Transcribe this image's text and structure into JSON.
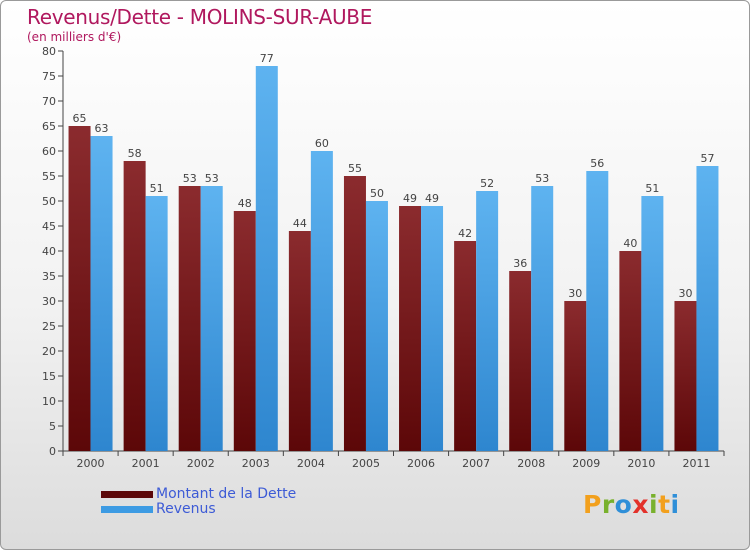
{
  "title": "Revenus/Dette - MOLINS-SUR-AUBE",
  "subtitle": "(en milliers d'€)",
  "logo": {
    "letters": [
      "P",
      "r",
      "o",
      "x",
      "i",
      "t",
      "i"
    ],
    "colors": [
      "#f2a01d",
      "#79b12d",
      "#2f8fd8",
      "#e3322b",
      "#79b12d",
      "#f2a01d",
      "#2f8fd8"
    ]
  },
  "chart_data": {
    "type": "bar",
    "categories": [
      "2000",
      "2001",
      "2002",
      "2003",
      "2004",
      "2005",
      "2006",
      "2007",
      "2008",
      "2009",
      "2010",
      "2011"
    ],
    "series": [
      {
        "name": "Montant de la Dette",
        "color": "#7a1a1c",
        "values": [
          65,
          58,
          53,
          48,
          44,
          55,
          49,
          42,
          36,
          30,
          40,
          30
        ]
      },
      {
        "name": "Revenus",
        "color": "#3d9be3",
        "values": [
          63,
          51,
          53,
          77,
          60,
          50,
          49,
          52,
          53,
          56,
          51,
          57
        ]
      }
    ],
    "ylim": [
      0,
      80
    ],
    "ytick_step": 5,
    "grid": false,
    "legend": "bottom-left"
  }
}
